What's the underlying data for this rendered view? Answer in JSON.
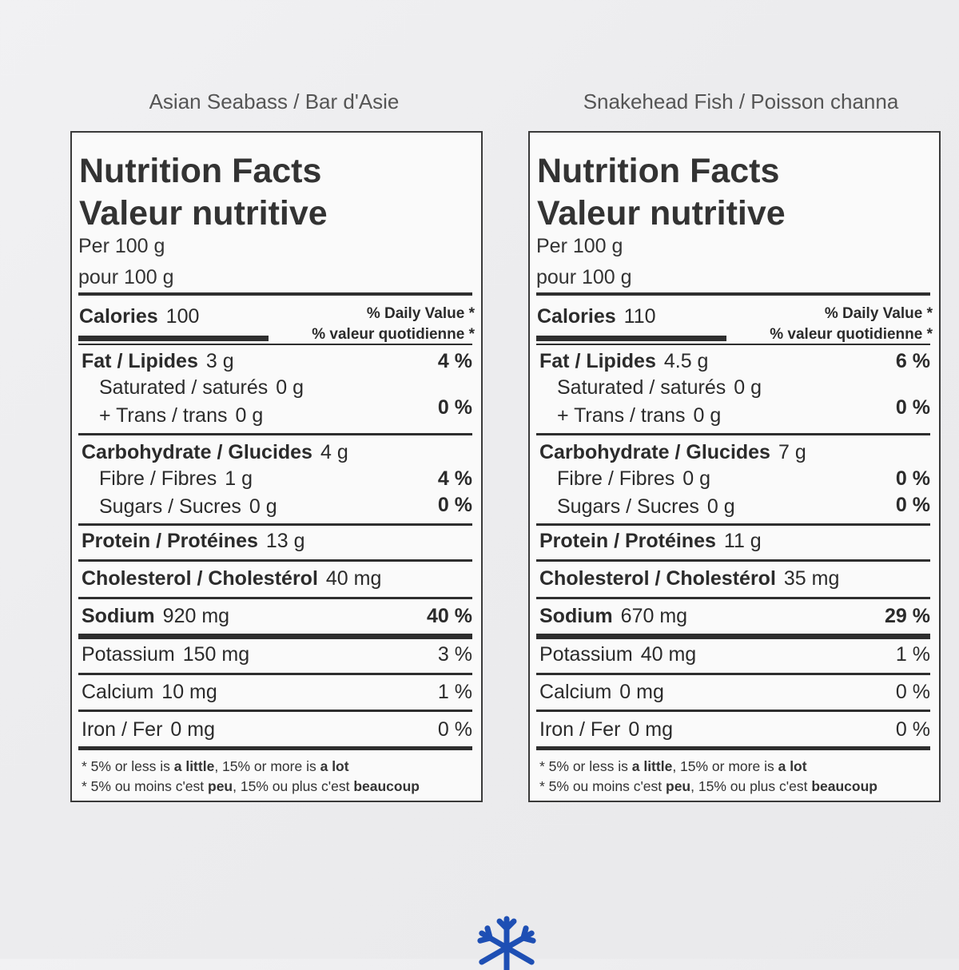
{
  "labels": [
    {
      "product": "Asian Seabass / Bar d'Asie",
      "title_en": "Nutrition Facts",
      "title_fr": "Valeur nutritive",
      "per_en": "Per 100 g",
      "per_fr": "pour 100 g",
      "calories_label": "Calories",
      "calories_value": "100",
      "dv_en": "% Daily Value *",
      "dv_fr": "% valeur quotidienne *",
      "fat": {
        "name": "Fat / Lipides",
        "amount": "3 g",
        "pct": "4 %"
      },
      "saturated": {
        "name": "Saturated / saturés",
        "amount": "0 g"
      },
      "trans": {
        "name": "+ Trans / trans",
        "amount": "0 g",
        "pct": "0 %"
      },
      "carb": {
        "name": "Carbohydrate / Glucides",
        "amount": "4 g"
      },
      "fibre": {
        "name": "Fibre / Fibres",
        "amount": "1 g",
        "pct": "4 %"
      },
      "sugars": {
        "name": "Sugars / Sucres",
        "amount": "0 g",
        "pct": "0 %"
      },
      "protein": {
        "name": "Protein / Protéines",
        "amount": "13 g"
      },
      "cholesterol": {
        "name": "Cholesterol / Cholestérol",
        "amount": "40 mg"
      },
      "sodium": {
        "name": "Sodium",
        "amount": "920 mg",
        "pct": "40 %"
      },
      "potassium": {
        "name": "Potassium",
        "amount": "150 mg",
        "pct": "3 %"
      },
      "calcium": {
        "name": "Calcium",
        "amount": "10 mg",
        "pct": "1 %"
      },
      "iron": {
        "name": "Iron / Fer",
        "amount": "0 mg",
        "pct": "0 %"
      },
      "footnote_en": {
        "a": "* 5% or less is ",
        "b": "a little",
        "c": ", 15% or more is ",
        "d": "a lot"
      },
      "footnote_fr": {
        "a": "* 5% ou moins c'est ",
        "b": "peu",
        "c": ", 15% ou plus c'est ",
        "d": "beaucoup"
      }
    },
    {
      "product": "Snakehead Fish / Poisson channa",
      "title_en": "Nutrition Facts",
      "title_fr": "Valeur nutritive",
      "per_en": "Per 100 g",
      "per_fr": "pour 100 g",
      "calories_label": "Calories",
      "calories_value": "110",
      "dv_en": "% Daily Value *",
      "dv_fr": "% valeur quotidienne *",
      "fat": {
        "name": "Fat / Lipides",
        "amount": "4.5 g",
        "pct": "6 %"
      },
      "saturated": {
        "name": "Saturated / saturés",
        "amount": "0 g"
      },
      "trans": {
        "name": "+ Trans / trans",
        "amount": "0 g",
        "pct": "0 %"
      },
      "carb": {
        "name": "Carbohydrate / Glucides",
        "amount": "7 g"
      },
      "fibre": {
        "name": "Fibre / Fibres",
        "amount": "0 g",
        "pct": "0 %"
      },
      "sugars": {
        "name": "Sugars / Sucres",
        "amount": "0 g",
        "pct": "0 %"
      },
      "protein": {
        "name": "Protein / Protéines",
        "amount": "11 g"
      },
      "cholesterol": {
        "name": "Cholesterol / Cholestérol",
        "amount": "35 mg"
      },
      "sodium": {
        "name": "Sodium",
        "amount": "670 mg",
        "pct": "29 %"
      },
      "potassium": {
        "name": "Potassium",
        "amount": "40 mg",
        "pct": "1 %"
      },
      "calcium": {
        "name": "Calcium",
        "amount": "0 mg",
        "pct": "0 %"
      },
      "iron": {
        "name": "Iron / Fer",
        "amount": "0 mg",
        "pct": "0 %"
      },
      "footnote_en": {
        "a": "* 5% or less is ",
        "b": "a little",
        "c": ", 15% or more is ",
        "d": "a lot"
      },
      "footnote_fr": {
        "a": "* 5% ou moins c'est ",
        "b": "peu",
        "c": ", 15% ou plus c'est ",
        "d": "beaucoup"
      }
    }
  ],
  "icons": {
    "frozen": "snowflake-icon",
    "frozen_color": "#1e4fb4"
  }
}
